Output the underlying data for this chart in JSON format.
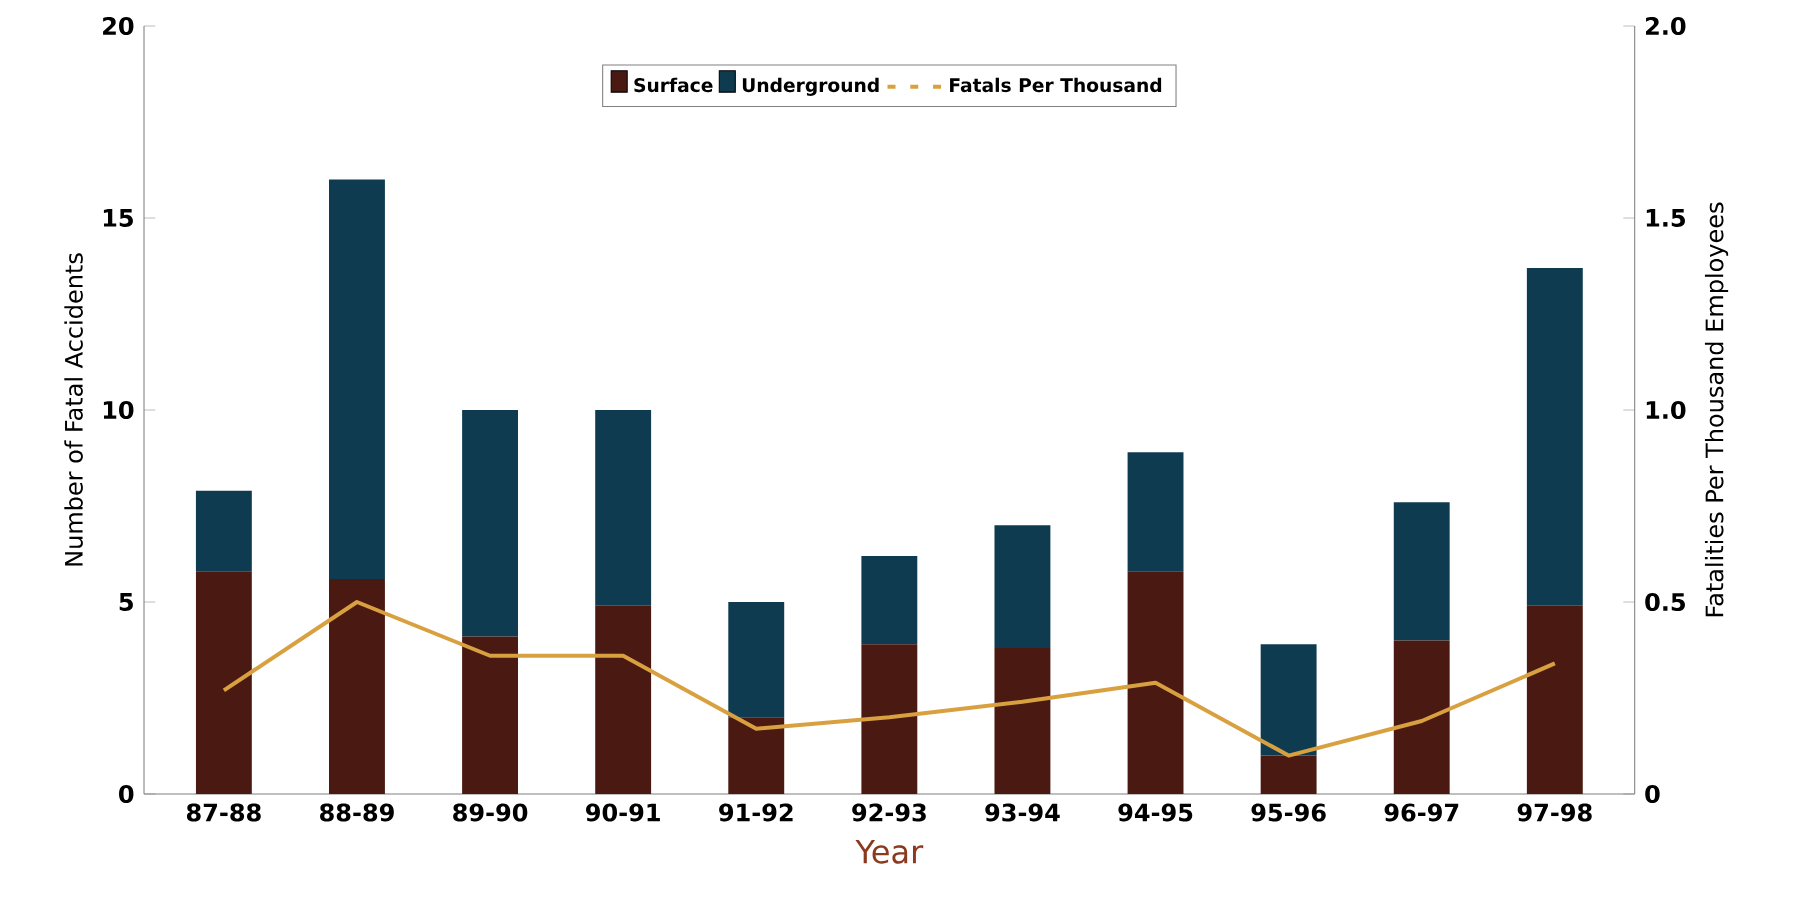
{
  "chart_data": {
    "type": "bar",
    "stacked": true,
    "xlabel": "Year",
    "ylabel": "Number of Fatal Accidents",
    "y2label": "Fatalities Per Thousand Employees",
    "categories": [
      "87-88",
      "88-89",
      "89-90",
      "90-91",
      "91-92",
      "92-93",
      "93-94",
      "94-95",
      "95-96",
      "96-97",
      "97-98"
    ],
    "series": [
      {
        "name": "Surface",
        "color": "#4a1a12",
        "values": [
          5.8,
          5.6,
          4.1,
          4.9,
          2.0,
          3.9,
          3.8,
          5.8,
          1.0,
          4.0,
          4.9
        ]
      },
      {
        "name": "Underground",
        "color": "#0e3b4f",
        "values": [
          2.1,
          10.4,
          5.9,
          5.1,
          3.0,
          2.3,
          3.2,
          3.1,
          2.9,
          3.6,
          8.8
        ]
      },
      {
        "name": "Fatals Per Thousand",
        "type": "line",
        "axis": "y2",
        "color": "#d9a040",
        "values": [
          0.27,
          0.5,
          0.36,
          0.36,
          0.17,
          0.2,
          0.24,
          0.29,
          0.1,
          0.19,
          0.34
        ]
      }
    ],
    "ylim": [
      0,
      20
    ],
    "yticks": [
      0,
      5,
      10,
      15,
      20
    ],
    "y2lim": [
      0,
      2
    ],
    "y2ticks": [
      0,
      0.5,
      {
        "value": 1,
        "label": "1.0"
      },
      1.5,
      {
        "value": 2,
        "label": "2.0"
      }
    ],
    "legend": "top",
    "grid": false,
    "marker": "none"
  }
}
